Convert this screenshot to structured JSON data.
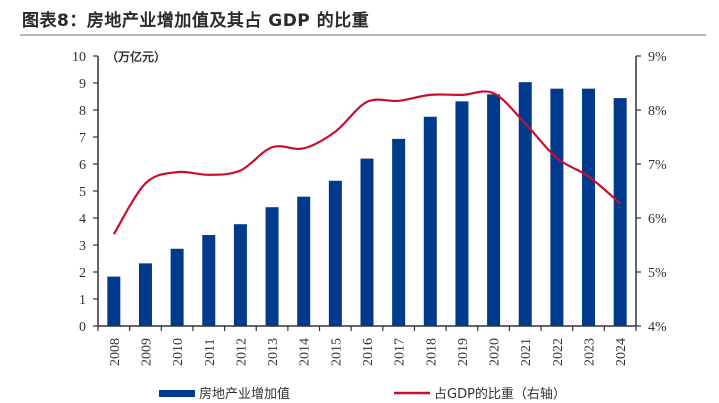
{
  "title": "图表8：房地产业增加值及其占 GDP 的比重",
  "chart_data": {
    "type": "bar",
    "title": "图表8：房地产业增加值及其占 GDP 的比重",
    "categories": [
      "2008",
      "2009",
      "2010",
      "2011",
      "2012",
      "2013",
      "2014",
      "2015",
      "2016",
      "2017",
      "2018",
      "2019",
      "2020",
      "2021",
      "2022",
      "2023",
      "2024"
    ],
    "series": [
      {
        "name": "房地产业增加值",
        "type": "bar",
        "axis": "left",
        "color": "#003a8c",
        "values": [
          1.83,
          2.32,
          2.86,
          3.37,
          3.77,
          4.4,
          4.79,
          5.38,
          6.2,
          6.93,
          7.75,
          8.32,
          8.58,
          9.03,
          8.79,
          8.79,
          8.44
        ]
      },
      {
        "name": "占GDP的比重（右轴）",
        "type": "line",
        "axis": "right",
        "color": "#c8102e",
        "unit": "%",
        "values": [
          5.7,
          6.64,
          6.85,
          6.8,
          6.88,
          7.31,
          7.29,
          7.6,
          8.15,
          8.17,
          8.28,
          8.28,
          8.31,
          7.75,
          7.11,
          6.77,
          6.27
        ]
      }
    ],
    "ylabel": "（万亿元）",
    "ylim": [
      0,
      10
    ],
    "yticks": [
      "0",
      "1",
      "2",
      "3",
      "4",
      "5",
      "6",
      "7",
      "8",
      "9",
      "10"
    ],
    "y2lim": [
      4,
      9
    ],
    "y2ticks": [
      "4%",
      "5%",
      "6%",
      "7%",
      "8%",
      "9%"
    ],
    "xlabel": "",
    "grid": false,
    "legend_placement": "bottom"
  },
  "legend": {
    "bar_label": "房地产业增加值",
    "line_label": "占GDP的比重（右轴）"
  }
}
